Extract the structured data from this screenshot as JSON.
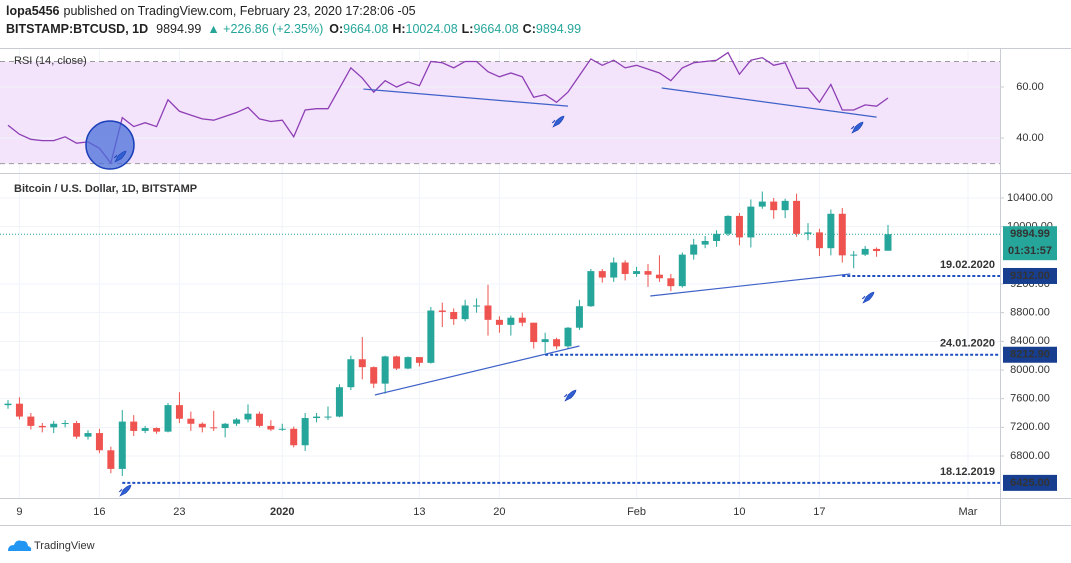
{
  "header": {
    "user": "lopa5456",
    "published": "published on TradingView.com, February 23, 2020 17:28:06 -05",
    "symbol": "BITSTAMP:BTCUSD, 1D",
    "last": "9894.99",
    "change": "▲ +226.86 (+2.35%)",
    "ohlc": [
      {
        "label": "O:",
        "value": "9664.08"
      },
      {
        "label": "H:",
        "value": "10024.08"
      },
      {
        "label": "L:",
        "value": "9664.08"
      },
      {
        "label": "C:",
        "value": "9894.99"
      }
    ]
  },
  "chart_data": [
    {
      "type": "line",
      "title": "RSI (14, close)",
      "color": "#8e3fb5",
      "band": [
        30,
        70
      ],
      "ylim": [
        26.7,
        74.5
      ],
      "yticks": [
        {
          "value": 60,
          "label": "60.00"
        },
        {
          "value": 40,
          "label": "40.00"
        }
      ],
      "values": [
        45,
        41.5,
        39.5,
        39,
        39,
        40.5,
        38,
        38.5,
        36,
        30.2,
        48,
        44.5,
        46,
        44.5,
        55,
        50.5,
        49,
        47.5,
        47,
        48.5,
        50,
        52,
        47.5,
        46.5,
        47,
        40.5,
        51,
        51.5,
        51.5,
        59.5,
        67.5,
        63.5,
        58,
        62.5,
        60,
        62,
        60.5,
        70,
        69.5,
        67.5,
        70,
        70,
        66,
        64,
        65.5,
        64,
        56,
        57,
        54,
        58,
        64.5,
        71,
        68.5,
        70.5,
        67.5,
        68.5,
        67,
        65.5,
        62.5,
        67.5,
        69.5,
        70,
        70.5,
        73.5,
        65,
        70.5,
        71.5,
        68.5,
        69.5,
        59.5,
        59.5,
        54,
        61,
        51,
        51,
        53,
        52.5,
        55.7
      ],
      "trendlines": [
        {
          "x": [
            31.1,
            49.0
          ],
          "y": [
            59.2,
            52.5
          ]
        },
        {
          "x": [
            57.2,
            76.0
          ],
          "y": [
            59.6,
            48.2
          ]
        }
      ]
    },
    {
      "type": "candlestick",
      "title": "Bitcoin / U.S. Dollar, 1D, BITSTAMP",
      "up_color": "#26a69a",
      "down_color": "#ef5350",
      "grid": true,
      "xlim": [
        -0.7,
        86.8
      ],
      "xticks": [
        {
          "value": 1,
          "label": "9"
        },
        {
          "value": 8,
          "label": "16"
        },
        {
          "value": 15,
          "label": "23"
        },
        {
          "value": 24,
          "label": "2020"
        },
        {
          "value": 36,
          "label": "13"
        },
        {
          "value": 43,
          "label": "20"
        },
        {
          "value": 55,
          "label": "Feb"
        },
        {
          "value": 64,
          "label": "10"
        },
        {
          "value": 71,
          "label": "17"
        },
        {
          "value": 84,
          "label": "Mar"
        }
      ],
      "ylim": [
        6214,
        10721
      ],
      "yticks": [
        {
          "value": 10400,
          "label": "10400.00"
        },
        {
          "value": 10000,
          "label": "10000.00"
        },
        {
          "value": 9200,
          "label": "9200.00"
        },
        {
          "value": 8800,
          "label": "8800.00"
        },
        {
          "value": 8400,
          "label": "8400.00"
        },
        {
          "value": 8000,
          "label": "8000.00"
        },
        {
          "value": 7600,
          "label": "7600.00"
        },
        {
          "value": 7200,
          "label": "7200.00"
        },
        {
          "value": 6800,
          "label": "6800.00"
        }
      ],
      "open": [
        7510,
        7530,
        7350,
        7220,
        7200,
        7250,
        7260,
        7070,
        7120,
        6880,
        6620,
        7280,
        7150,
        7190,
        7140,
        7510,
        7320,
        7250,
        7200,
        7190,
        7250,
        7310,
        7390,
        7220,
        7170,
        7180,
        6950,
        7330,
        7350,
        7350,
        7760,
        8150,
        8040,
        7810,
        8190,
        8020,
        8180,
        8100,
        8830,
        8810,
        8710,
        8900,
        8900,
        8700,
        8630,
        8730,
        8660,
        8390,
        8430,
        8330,
        8590,
        8890,
        9380,
        9290,
        9500,
        9340,
        9380,
        9330,
        9280,
        9170,
        9610,
        9750,
        9800,
        9900,
        10150,
        9850,
        10280,
        10350,
        10230,
        10360,
        9900,
        9920,
        9700,
        10180,
        9600,
        9610,
        9690,
        9664.08
      ],
      "high": [
        7580,
        7620,
        7400,
        7260,
        7290,
        7300,
        7290,
        7160,
        7180,
        6930,
        7440,
        7370,
        7220,
        7200,
        7540,
        7690,
        7420,
        7270,
        7430,
        7260,
        7330,
        7520,
        7420,
        7300,
        7250,
        7210,
        7400,
        7400,
        7490,
        7800,
        8200,
        8460,
        8050,
        8200,
        8200,
        8190,
        8180,
        8880,
        8940,
        8860,
        8980,
        9000,
        9190,
        8750,
        8760,
        8800,
        8660,
        8520,
        8450,
        8600,
        8980,
        9410,
        9410,
        9570,
        9530,
        9440,
        9480,
        9600,
        9340,
        9640,
        9830,
        9870,
        9950,
        10160,
        10190,
        10380,
        10490,
        10400,
        10390,
        10460,
        10050,
        9970,
        10240,
        10260,
        9660,
        9730,
        9710,
        10024.08
      ],
      "low": [
        7460,
        7310,
        7170,
        7130,
        7120,
        7200,
        7040,
        7030,
        6840,
        6560,
        6520,
        7080,
        7120,
        7110,
        7130,
        7260,
        7150,
        7130,
        7150,
        7060,
        7220,
        7270,
        7200,
        7150,
        7150,
        6920,
        6870,
        7270,
        7300,
        7340,
        7720,
        7870,
        7750,
        7670,
        8000,
        8010,
        8050,
        8090,
        8600,
        8630,
        8680,
        8800,
        8480,
        8520,
        8480,
        8610,
        8300,
        8240,
        8290,
        8300,
        8560,
        8880,
        9220,
        9230,
        9250,
        9300,
        9160,
        9230,
        9100,
        9150,
        9540,
        9700,
        9720,
        9870,
        9740,
        9710,
        10250,
        10110,
        10120,
        9860,
        9810,
        9590,
        9600,
        9500,
        9420,
        9590,
        9580,
        9664.08
      ],
      "close": [
        7530,
        7350,
        7220,
        7200,
        7250,
        7260,
        7070,
        7120,
        6880,
        6620,
        7280,
        7150,
        7190,
        7140,
        7510,
        7320,
        7250,
        7200,
        7190,
        7250,
        7310,
        7390,
        7220,
        7170,
        7180,
        6950,
        7330,
        7350,
        7350,
        7760,
        8150,
        8040,
        7810,
        8190,
        8020,
        8180,
        8100,
        8830,
        8810,
        8710,
        8900,
        8900,
        8700,
        8630,
        8730,
        8660,
        8390,
        8430,
        8330,
        8590,
        8890,
        9380,
        9290,
        9500,
        9340,
        9380,
        9330,
        9280,
        9170,
        9610,
        9750,
        9800,
        9900,
        10150,
        9850,
        10280,
        10350,
        10230,
        10360,
        9900,
        9920,
        9700,
        10180,
        9600,
        9610,
        9690,
        9660,
        9894.99
      ],
      "last_price": {
        "value": 9894.99,
        "label": "9894.99"
      },
      "countdown": "01:31:57",
      "levels": [
        {
          "value": 9312,
          "label": "9312.00",
          "date": "19.02.2020",
          "x": 73
        },
        {
          "value": 8212.9,
          "label": "8212.90",
          "date": "24.01.2020",
          "x": 47
        },
        {
          "value": 6425,
          "label": "6425.00",
          "date": "18.12.2019",
          "x": 10
        }
      ],
      "trendlines": [
        {
          "x": [
            32.1,
            50.0
          ],
          "y": [
            7651,
            8335
          ]
        },
        {
          "x": [
            56.2,
            73.7
          ],
          "y": [
            9033,
            9340
          ]
        }
      ]
    }
  ],
  "footer": {
    "brand": "TradingView"
  }
}
